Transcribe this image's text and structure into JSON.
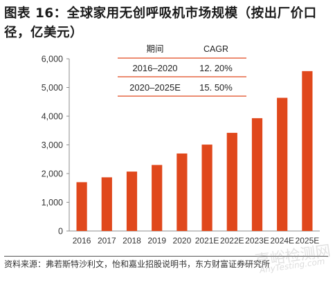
{
  "title": "图表  16：全球家用无创呼吸机市场规模（按出厂价口径，亿美元）",
  "chart_data": {
    "type": "bar",
    "categories": [
      "2016",
      "2017",
      "2018",
      "2019",
      "2020",
      "2021E",
      "2022E",
      "2023E",
      "2024E",
      "2025E"
    ],
    "values": [
      1700,
      1870,
      2070,
      2300,
      2700,
      3010,
      3420,
      3930,
      4640,
      5570
    ],
    "ylim": [
      0,
      6000
    ],
    "yticks": [
      "0",
      "1,000",
      "2,000",
      "3,000",
      "4,000",
      "5,000",
      "6,000"
    ],
    "grid": false,
    "bar_color": "#E0481C",
    "table": {
      "headers": [
        "期间",
        "CAGR"
      ],
      "rows": [
        [
          "2016–2020",
          "12. 20%"
        ],
        [
          "2020–2025E",
          "15. 50%"
        ]
      ],
      "rule_color": "#E0481C"
    }
  },
  "source": "资料来源：弗若斯特沙利文，怡和嘉业招股说明书，东方财富证券研究所",
  "watermark": {
    "main": "嘉峪检测网",
    "sub": "AnyTesting.com"
  }
}
